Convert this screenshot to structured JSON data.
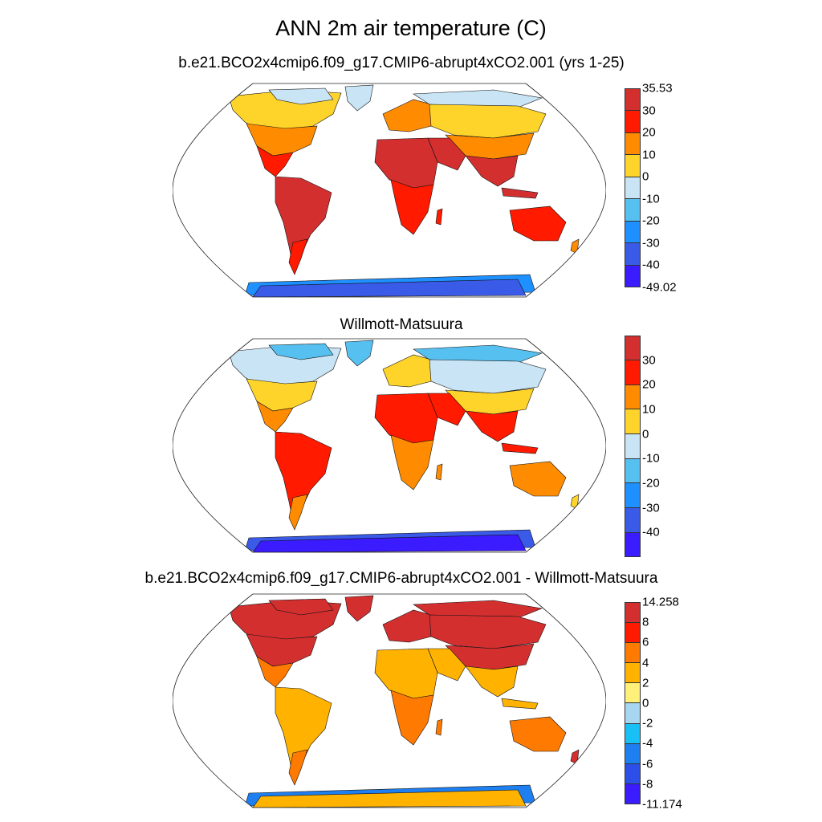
{
  "title": "ANN 2m air temperature (C)",
  "panels": [
    {
      "id": "model",
      "title": "b.e21.BCO2x4cmip6.f09_g17.CMIP6-abrupt4xCO2.001 (yrs 1-25)",
      "colorbar": {
        "colors": [
          "#3b1bff",
          "#3a5ae8",
          "#1e90ff",
          "#56c0f0",
          "#c8e4f5",
          "#ffd42a",
          "#ff8c00",
          "#ff1a00",
          "#d32f2f"
        ],
        "labels": [
          "-49.02",
          "-40",
          "-30",
          "-20",
          "-10",
          "0",
          "10",
          "20",
          "30",
          "35.53"
        ]
      },
      "region_colors": {
        "land_north": "#ffd42a",
        "land_boreal": "#ff8c00",
        "land_arctic": "#c8e4f5",
        "land_mid": "#ff1a00",
        "land_tropics": "#d32f2f",
        "antarctica": "#3a5ae8",
        "antarctica_coast": "#1e90ff"
      }
    },
    {
      "id": "obs",
      "title": "Willmott-Matsuura",
      "colorbar": {
        "colors": [
          "#3b1bff",
          "#3a5ae8",
          "#1e90ff",
          "#56c0f0",
          "#c8e4f5",
          "#ffd42a",
          "#ff8c00",
          "#ff1a00",
          "#d32f2f"
        ],
        "labels": [
          "",
          "-40",
          "-30",
          "-20",
          "-10",
          "0",
          "10",
          "20",
          "30",
          ""
        ]
      },
      "region_colors": {
        "land_north": "#c8e4f5",
        "land_boreal": "#ffd42a",
        "land_arctic": "#56c0f0",
        "land_mid": "#ff8c00",
        "land_tropics": "#ff1a00",
        "antarctica": "#3b1bff",
        "antarctica_coast": "#3a5ae8"
      }
    },
    {
      "id": "diff",
      "title": "b.e21.BCO2x4cmip6.f09_g17.CMIP6-abrupt4xCO2.001 - Willmott-Matsuura",
      "colorbar": {
        "colors": [
          "#3b1bff",
          "#2b4fe8",
          "#1e7ff0",
          "#19c0f5",
          "#a6d6f0",
          "#fff07a",
          "#ffb300",
          "#ff7a00",
          "#ff1a00",
          "#d32f2f"
        ],
        "labels": [
          "-11.174",
          "-8",
          "-6",
          "-4",
          "-2",
          "0",
          "2",
          "4",
          "6",
          "8",
          "14.258"
        ]
      },
      "region_colors": {
        "land_north": "#d32f2f",
        "land_boreal": "#d32f2f",
        "land_arctic": "#d32f2f",
        "land_mid": "#ff7a00",
        "land_tropics": "#ffb300",
        "antarctica": "#ffb300",
        "antarctica_coast": "#1e7ff0"
      }
    }
  ]
}
